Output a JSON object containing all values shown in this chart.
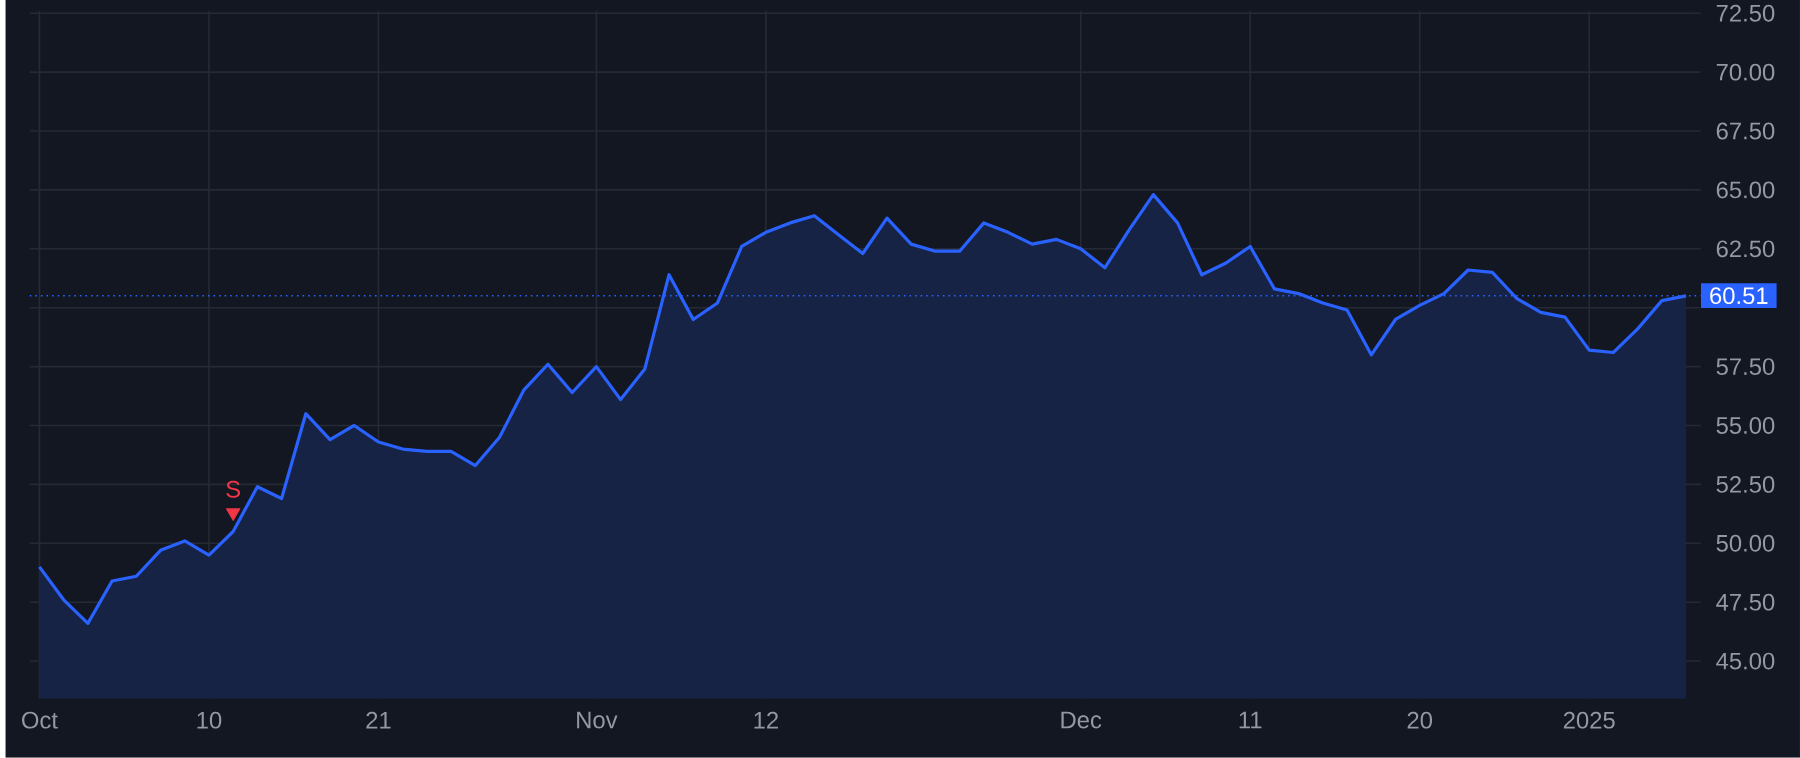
{
  "chart_data": {
    "type": "area",
    "categories": [
      "Oct",
      null,
      null,
      null,
      null,
      null,
      null,
      "10",
      null,
      null,
      null,
      null,
      null,
      null,
      "21",
      null,
      null,
      null,
      null,
      null,
      null,
      null,
      null,
      "Nov",
      null,
      null,
      null,
      null,
      null,
      null,
      "12",
      null,
      null,
      null,
      null,
      null,
      null,
      null,
      null,
      null,
      null,
      null,
      null,
      "Dec",
      null,
      null,
      null,
      null,
      null,
      null,
      "11",
      null,
      null,
      null,
      null,
      null,
      null,
      "20",
      null,
      null,
      null,
      null,
      null,
      null,
      "2025",
      null,
      null,
      null,
      null
    ],
    "series": [
      {
        "color": "#2962ff",
        "values": [
          49.0,
          47.6,
          46.6,
          48.4,
          48.6,
          49.7,
          50.1,
          49.5,
          50.5,
          52.4,
          51.9,
          55.5,
          54.4,
          55.0,
          54.3,
          54.0,
          53.9,
          53.9,
          53.3,
          54.5,
          56.5,
          57.6,
          56.4,
          57.5,
          56.1,
          57.4,
          61.4,
          59.5,
          60.2,
          62.6,
          63.2,
          63.6,
          63.9,
          63.1,
          62.3,
          63.8,
          62.7,
          62.4,
          62.4,
          63.6,
          63.2,
          62.7,
          62.9,
          62.5,
          61.7,
          63.3,
          64.8,
          63.6,
          61.4,
          61.9,
          62.6,
          60.8,
          60.6,
          60.2,
          59.9,
          58.0,
          59.5,
          60.1,
          60.6,
          61.6,
          61.5,
          60.4,
          59.8,
          59.6,
          58.2,
          58.1,
          59.1,
          60.3,
          60.5
        ]
      },
      {
        "type": "scatter",
        "name": "S",
        "color": "#f23645",
        "marker": "triangle",
        "values": [
          null,
          null,
          null,
          null,
          null,
          null,
          null,
          null,
          51.3,
          null,
          null,
          null,
          null,
          null,
          null,
          null,
          null,
          null,
          null,
          null,
          null,
          null,
          null,
          null,
          null,
          null,
          null,
          null,
          null,
          null,
          null,
          null,
          null,
          null,
          null,
          null,
          null,
          null,
          null,
          null,
          null,
          null,
          null,
          null,
          null,
          null,
          null,
          null,
          null,
          null,
          null,
          null,
          null,
          null,
          null,
          null,
          null,
          null,
          null,
          null,
          null,
          null,
          null,
          null,
          null,
          null,
          null,
          null,
          null
        ]
      }
    ],
    "ylim": [
      43.4,
      72.6
    ],
    "yticks": [
      {
        "value": 45,
        "label": "45.00"
      },
      {
        "value": 47.5,
        "label": "47.50"
      },
      {
        "value": 50,
        "label": "50.00"
      },
      {
        "value": 52.5,
        "label": "52.50"
      },
      {
        "value": 55,
        "label": "55.00"
      },
      {
        "value": 57.5,
        "label": "57.50"
      },
      {
        "value": 60,
        "label": null
      },
      {
        "value": 62.5,
        "label": "62.50"
      },
      {
        "value": 65,
        "label": "65.00"
      },
      {
        "value": 67.5,
        "label": "67.50"
      },
      {
        "value": 70,
        "label": "70.00"
      },
      {
        "value": 72.5,
        "label": "72.50"
      }
    ],
    "grid": true,
    "ref_lines": [
      {
        "axis": "y",
        "value": 60.51,
        "label": "60.51",
        "color": "#2962ff",
        "line_style": "dotted"
      }
    ]
  }
}
